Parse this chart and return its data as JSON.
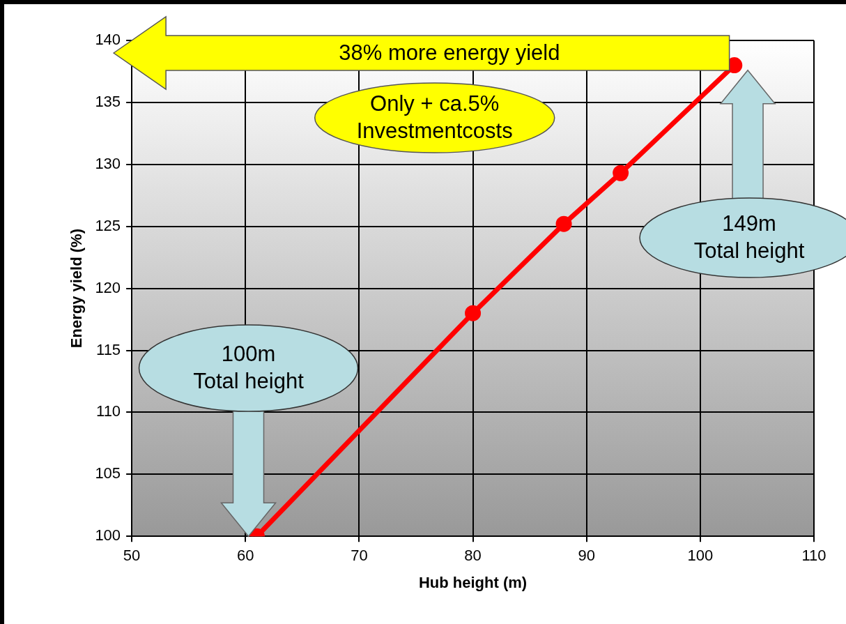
{
  "chart_data": {
    "type": "line",
    "xlabel": "Hub height (m)",
    "ylabel": "Energy yield (%)",
    "x": [
      61,
      80,
      88,
      93,
      103
    ],
    "series": [
      {
        "color": "#ff0000",
        "values": [
          100,
          118,
          125.2,
          129.3,
          138
        ]
      }
    ],
    "xlim": [
      50,
      110
    ],
    "xticks": [
      50,
      60,
      70,
      80,
      90,
      100,
      110
    ],
    "ylim": [
      100,
      140
    ],
    "yticks": [
      100,
      105,
      110,
      115,
      120,
      125,
      130,
      135,
      140
    ],
    "grid": true,
    "legend": false,
    "marker": "circle",
    "line_style": "solid",
    "annotations": [
      "38% more energy yield",
      "Only + ca.5%\nInvestmentcosts",
      "149m\nTotal height",
      "100m\nTotal height"
    ]
  }
}
